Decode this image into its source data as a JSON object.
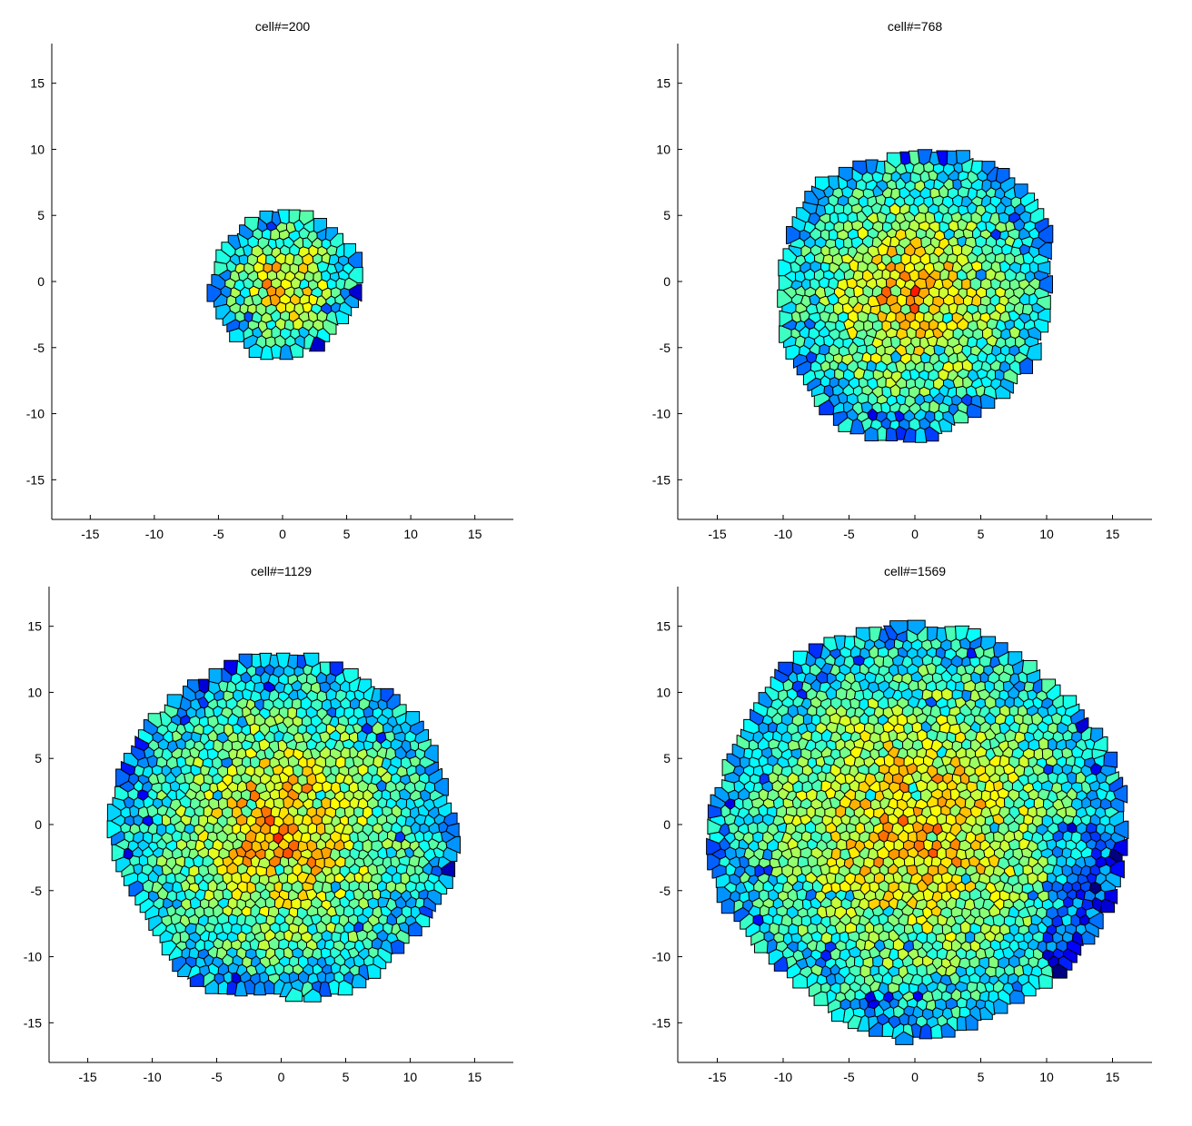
{
  "chart_data": [
    {
      "type": "voronoi-scatter",
      "title": "cell#=200",
      "cell_count": 200,
      "colony_radius": 5.3,
      "xlim": [
        -18,
        18
      ],
      "ylim": [
        -18,
        18
      ],
      "xticks": [
        -15,
        -10,
        -5,
        0,
        5,
        10,
        15
      ],
      "yticks": [
        15,
        10,
        5,
        0,
        -5,
        -10,
        -15
      ],
      "colormap": "jet",
      "grid": false
    },
    {
      "type": "voronoi-scatter",
      "title": "cell#=768",
      "cell_count": 768,
      "colony_radius": 10.5,
      "xlim": [
        -18,
        18
      ],
      "ylim": [
        -18,
        18
      ],
      "xticks": [
        -15,
        -10,
        -5,
        0,
        5,
        10,
        15
      ],
      "yticks": [
        15,
        10,
        5,
        0,
        -5,
        -10,
        -15
      ],
      "colormap": "jet",
      "grid": false
    },
    {
      "type": "voronoi-scatter",
      "title": "cell#=1129",
      "cell_count": 1129,
      "colony_radius": 12.8,
      "xlim": [
        -18,
        18
      ],
      "ylim": [
        -18,
        18
      ],
      "xticks": [
        -15,
        -10,
        -5,
        0,
        5,
        10,
        15
      ],
      "yticks": [
        15,
        10,
        5,
        0,
        -5,
        -10,
        -15
      ],
      "colormap": "jet",
      "grid": false
    },
    {
      "type": "voronoi-scatter",
      "title": "cell#=1569",
      "cell_count": 1569,
      "colony_radius": 15.2,
      "xlim": [
        -18,
        18
      ],
      "ylim": [
        -18,
        18
      ],
      "xticks": [
        -15,
        -10,
        -5,
        0,
        5,
        10,
        15
      ],
      "yticks": [
        15,
        10,
        5,
        0,
        -5,
        -10,
        -15
      ],
      "colormap": "jet",
      "grid": false
    }
  ],
  "colors": {
    "background": "#ffffff",
    "axis": "#000000",
    "cell_edge": "#000000",
    "jet_low": "#1f3fd6",
    "jet_mid": "#4fe89a",
    "jet_high": "#e0401a"
  }
}
